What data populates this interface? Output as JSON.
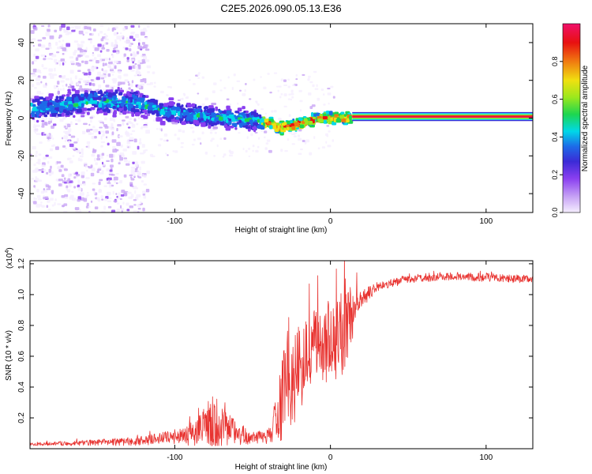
{
  "page_title": "C2E5.2026.090.05.13.E36",
  "colors": {
    "trace": "#e8322f",
    "axis": "#000000",
    "background": "#ffffff",
    "colormap": [
      "#f5eeff",
      "#c9a6f5",
      "#8a3ff0",
      "#3b2bd6",
      "#1d6be8",
      "#00d8e8",
      "#1dd650",
      "#9be81d",
      "#f0e010",
      "#f07a10",
      "#e81010",
      "#f0106a"
    ]
  },
  "chart_data": [
    {
      "type": "heatmap",
      "title": "C2E5.2026.090.05.13.E36",
      "xlabel": "Height of straight line (km)",
      "ylabel": "Frequency (Hz)",
      "xlim": [
        -193,
        130
      ],
      "ylim": [
        -50,
        50
      ],
      "x_ticks": [
        {
          "value": -100,
          "label": "-100"
        },
        {
          "value": 0,
          "label": "0"
        },
        {
          "value": 100,
          "label": "100"
        }
      ],
      "y_ticks": [
        {
          "value": -40,
          "label": "-40"
        },
        {
          "value": -20,
          "label": "-20"
        },
        {
          "value": 0,
          "label": "0"
        },
        {
          "value": 20,
          "label": "20"
        },
        {
          "value": 40,
          "label": "40"
        }
      ],
      "ridge": [
        {
          "x": -190,
          "f": 6
        },
        {
          "x": -170,
          "f": 8
        },
        {
          "x": -150,
          "f": 10
        },
        {
          "x": -125,
          "f": 9
        },
        {
          "x": -110,
          "f": 5
        },
        {
          "x": -90,
          "f": 3
        },
        {
          "x": -70,
          "f": 1
        },
        {
          "x": -50,
          "f": 0
        },
        {
          "x": -40,
          "f": -2
        },
        {
          "x": -35,
          "f": -4
        },
        {
          "x": -25,
          "f": -3
        },
        {
          "x": -15,
          "f": 0
        },
        {
          "x": -5,
          "f": 1
        },
        {
          "x": 5,
          "f": 1
        },
        {
          "x": 10,
          "f": 1
        },
        {
          "x": 15,
          "f": 0.5
        },
        {
          "x": 130,
          "f": 0.5
        }
      ],
      "colorbar": {
        "label": "Normalized spectral amplitude",
        "range": [
          0,
          1
        ],
        "ticks": [
          {
            "value": 0.0,
            "label": "0.0"
          },
          {
            "value": 0.2,
            "label": "0.2"
          },
          {
            "value": 0.4,
            "label": "0.4"
          },
          {
            "value": 0.6,
            "label": "0.6"
          },
          {
            "value": 0.8,
            "label": "0.8"
          }
        ]
      }
    },
    {
      "type": "line",
      "xlabel": "Height of straight line (km)",
      "ylabel": "SNR (10 * v/v)",
      "y_multiplier": "(x10",
      "y_multiplier_exp": "4",
      "y_multiplier_close": ")",
      "xlim": [
        -193,
        130
      ],
      "ylim": [
        0,
        1.22
      ],
      "x_ticks": [
        {
          "value": -100,
          "label": "-100"
        },
        {
          "value": 0,
          "label": "0"
        },
        {
          "value": 100,
          "label": "100"
        }
      ],
      "y_ticks": [
        {
          "value": 0.2,
          "label": "0.2"
        },
        {
          "value": 0.4,
          "label": "0.4"
        },
        {
          "value": 0.6,
          "label": "0.6"
        },
        {
          "value": 0.8,
          "label": "0.8"
        },
        {
          "value": 1.0,
          "label": "1.0"
        },
        {
          "value": 1.2,
          "label": "1.2"
        }
      ],
      "series": [
        {
          "name": "SNR",
          "envelope": [
            {
              "x": -193,
              "base": 0.03,
              "amp": 0.01
            },
            {
              "x": -150,
              "base": 0.04,
              "amp": 0.02
            },
            {
              "x": -120,
              "base": 0.05,
              "amp": 0.03
            },
            {
              "x": -100,
              "base": 0.08,
              "amp": 0.05
            },
            {
              "x": -90,
              "base": 0.1,
              "amp": 0.08
            },
            {
              "x": -80,
              "base": 0.14,
              "amp": 0.15
            },
            {
              "x": -75,
              "base": 0.16,
              "amp": 0.2
            },
            {
              "x": -70,
              "base": 0.14,
              "amp": 0.15
            },
            {
              "x": -60,
              "base": 0.1,
              "amp": 0.08
            },
            {
              "x": -50,
              "base": 0.07,
              "amp": 0.04
            },
            {
              "x": -40,
              "base": 0.08,
              "amp": 0.05
            },
            {
              "x": -35,
              "base": 0.2,
              "amp": 0.15
            },
            {
              "x": -30,
              "base": 0.35,
              "amp": 0.3
            },
            {
              "x": -25,
              "base": 0.45,
              "amp": 0.35
            },
            {
              "x": -20,
              "base": 0.5,
              "amp": 0.3
            },
            {
              "x": -15,
              "base": 0.6,
              "amp": 0.25
            },
            {
              "x": -10,
              "base": 0.65,
              "amp": 0.25
            },
            {
              "x": -5,
              "base": 0.68,
              "amp": 0.25
            },
            {
              "x": 0,
              "base": 0.7,
              "amp": 0.3
            },
            {
              "x": 5,
              "base": 0.74,
              "amp": 0.3
            },
            {
              "x": 10,
              "base": 0.8,
              "amp": 0.35
            },
            {
              "x": 15,
              "base": 0.88,
              "amp": 0.15
            },
            {
              "x": 20,
              "base": 0.97,
              "amp": 0.06
            },
            {
              "x": 30,
              "base": 1.05,
              "amp": 0.03
            },
            {
              "x": 50,
              "base": 1.1,
              "amp": 0.025
            },
            {
              "x": 80,
              "base": 1.12,
              "amp": 0.025
            },
            {
              "x": 100,
              "base": 1.11,
              "amp": 0.03
            },
            {
              "x": 130,
              "base": 1.1,
              "amp": 0.025
            }
          ]
        }
      ]
    }
  ]
}
